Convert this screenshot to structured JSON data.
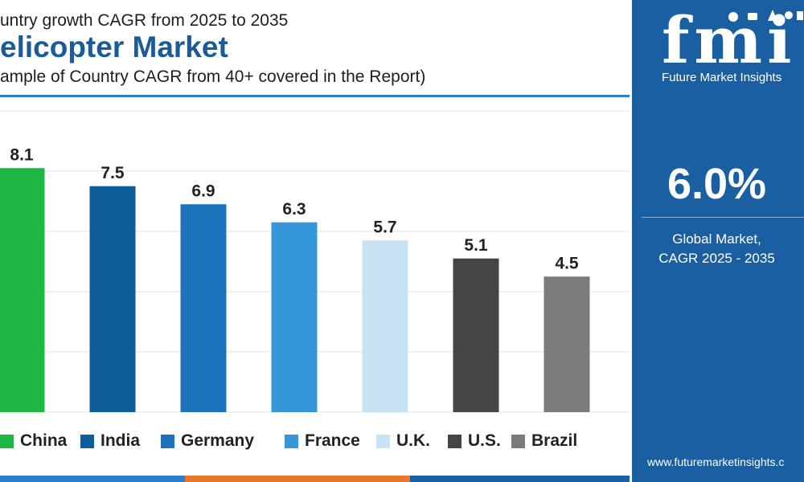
{
  "header": {
    "subtitle_line": "untry growth CAGR from 2025 to 2035",
    "title": "elicopter Market",
    "note": "ample of Country CAGR from 40+ covered in the Report)"
  },
  "chart_data": {
    "type": "bar",
    "categories": [
      "China",
      "India",
      "Germany",
      "France",
      "U.K.",
      "U.S.",
      "Brazil"
    ],
    "values": [
      8.1,
      7.5,
      6.9,
      6.3,
      5.7,
      5.1,
      4.5
    ],
    "colors": [
      "#1db843",
      "#0f5d99",
      "#1c73bb",
      "#3596d8",
      "#c7e3f4",
      "#454545",
      "#7b7b7b"
    ],
    "ylim": [
      0,
      10
    ],
    "grid": true,
    "legend": "bottom"
  },
  "panel": {
    "logo_text": "fmi",
    "logo_subtitle": "Future Market Insights",
    "value": "6.0%",
    "caption_line1": "Global Market,",
    "caption_line2": "CAGR 2025 - 2035",
    "url": "www.futuremarketinsights.c"
  },
  "colors": {
    "panel_blue": "#1b5fa3",
    "title_blue": "#1a5b9a",
    "stripe": [
      "#2a7fcf",
      "#e8762b",
      "#1b5fa3"
    ]
  }
}
